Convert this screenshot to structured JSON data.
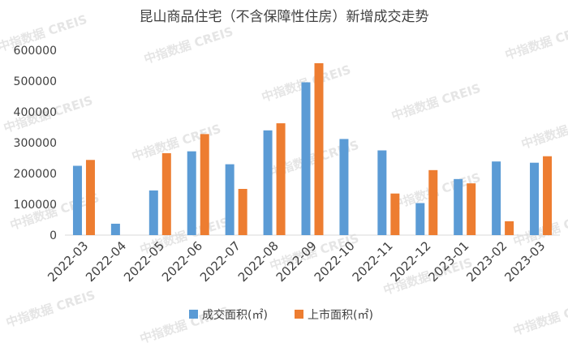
{
  "watermark": "中指数据 CREIS",
  "chart_data": {
    "type": "bar",
    "title": "昆山商品住宅（不含保障性住房）新增成交走势",
    "xlabel": "",
    "ylabel": "",
    "ylim": [
      0,
      600000
    ],
    "yticks": [
      "0",
      "100000",
      "200000",
      "300000",
      "400000",
      "500000",
      "600000"
    ],
    "grid": false,
    "legend": "bottom",
    "categories": [
      "2022-03",
      "2022-04",
      "2022-05",
      "2022-06",
      "2022-07",
      "2022-08",
      "2022-09",
      "2022-10",
      "2022-11",
      "2022-12",
      "2023-01",
      "2023-02",
      "2023-03"
    ],
    "series": [
      {
        "name": "成交面积(㎡)",
        "color": "#5b9bd5",
        "values": [
          225000,
          37000,
          145000,
          272000,
          230000,
          340000,
          496000,
          312000,
          275000,
          104000,
          182000,
          239000,
          235000
        ]
      },
      {
        "name": "上市面积(㎡)",
        "color": "#ed7d31",
        "values": [
          244000,
          0,
          266000,
          328000,
          150000,
          363000,
          558000,
          0,
          135000,
          211000,
          168000,
          45000,
          256000
        ]
      }
    ]
  }
}
